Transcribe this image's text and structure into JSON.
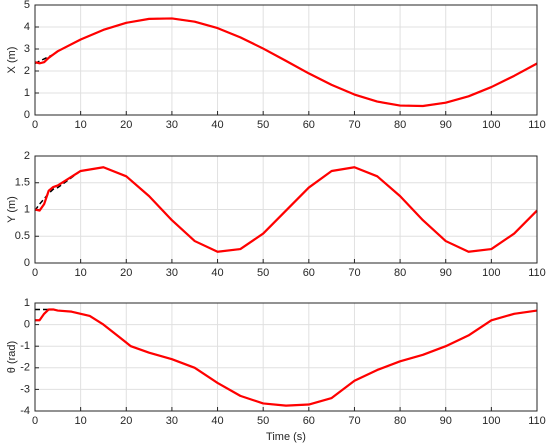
{
  "chart_data": [
    {
      "type": "line",
      "ylabel": "X (m)",
      "x": [
        0,
        1,
        2,
        3,
        4,
        5,
        10,
        15,
        20,
        25,
        30,
        35,
        40,
        45,
        50,
        55,
        60,
        65,
        70,
        75,
        80,
        85,
        90,
        95,
        100,
        105,
        110
      ],
      "series": [
        {
          "color": "#000000",
          "dash": true,
          "values": [
            2.34,
            2.45,
            2.55,
            2.65,
            2.75,
            2.9,
            3.43,
            3.87,
            4.19,
            4.37,
            4.39,
            4.24,
            3.95,
            3.53,
            3.02,
            2.46,
            1.89,
            1.37,
            0.93,
            0.61,
            0.43,
            0.41,
            0.56,
            0.85,
            1.27,
            1.78,
            2.34
          ]
        },
        {
          "color": "#ff0000",
          "dash": false,
          "values": [
            2.4,
            2.35,
            2.4,
            2.6,
            2.75,
            2.9,
            3.43,
            3.87,
            4.19,
            4.37,
            4.39,
            4.24,
            3.95,
            3.53,
            3.02,
            2.46,
            1.89,
            1.37,
            0.93,
            0.61,
            0.43,
            0.41,
            0.56,
            0.85,
            1.27,
            1.78,
            2.34
          ]
        }
      ],
      "xlim": [
        0,
        110
      ],
      "xticks": [
        0,
        10,
        20,
        30,
        40,
        50,
        60,
        70,
        80,
        90,
        100,
        110
      ],
      "ylim": [
        0,
        5
      ],
      "yticks": [
        0,
        1,
        2,
        3,
        4,
        5
      ],
      "grid": true
    },
    {
      "type": "line",
      "ylabel": "Y (m)",
      "x": [
        0,
        1,
        2,
        3,
        4,
        5,
        10,
        15,
        20,
        25,
        30,
        35,
        40,
        45,
        50,
        55,
        60,
        65,
        70,
        75,
        80,
        85,
        90,
        95,
        100,
        105,
        110
      ],
      "series": [
        {
          "color": "#000000",
          "dash": true,
          "values": [
            0.98,
            1.1,
            1.2,
            1.3,
            1.38,
            1.41,
            1.72,
            1.79,
            1.62,
            1.25,
            0.8,
            0.41,
            0.21,
            0.26,
            0.55,
            0.98,
            1.41,
            1.72,
            1.79,
            1.62,
            1.25,
            0.8,
            0.41,
            0.21,
            0.26,
            0.55,
            0.98
          ]
        },
        {
          "color": "#ff0000",
          "dash": false,
          "values": [
            1.0,
            0.98,
            1.1,
            1.35,
            1.42,
            1.45,
            1.72,
            1.79,
            1.62,
            1.25,
            0.8,
            0.41,
            0.21,
            0.26,
            0.55,
            0.98,
            1.41,
            1.72,
            1.79,
            1.62,
            1.25,
            0.8,
            0.41,
            0.21,
            0.26,
            0.55,
            0.98
          ]
        }
      ],
      "xlim": [
        0,
        110
      ],
      "xticks": [
        0,
        10,
        20,
        30,
        40,
        50,
        60,
        70,
        80,
        90,
        100,
        110
      ],
      "ylim": [
        0,
        2
      ],
      "yticks": [
        0,
        0.5,
        1,
        1.5,
        2
      ],
      "grid": true
    },
    {
      "type": "line",
      "ylabel": "θ (rad)",
      "xlabel": "Time (s)",
      "x": [
        0,
        1,
        2,
        3,
        4,
        5,
        8,
        12,
        15,
        18,
        21,
        25,
        30,
        35,
        40,
        45,
        50,
        55,
        60,
        65,
        70,
        75,
        80,
        85,
        90,
        95,
        100,
        105,
        110
      ],
      "series": [
        {
          "color": "#000000",
          "dash": true,
          "values": [
            0.7,
            0.7,
            0.7,
            0.7,
            0.7,
            0.65,
            0.6,
            0.4,
            0,
            -0.5,
            -1.0,
            -1.3,
            -1.6,
            -2.0,
            -2.7,
            -3.3,
            -3.65,
            -3.75,
            -3.7,
            -3.4,
            -2.6,
            -2.1,
            -1.7,
            -1.4,
            -1.0,
            -0.5,
            0.2,
            0.5,
            0.65
          ]
        },
        {
          "color": "#ff0000",
          "dash": false,
          "values": [
            0.2,
            0.2,
            0.5,
            0.7,
            0.7,
            0.65,
            0.6,
            0.4,
            0,
            -0.5,
            -1.0,
            -1.3,
            -1.6,
            -2.0,
            -2.7,
            -3.3,
            -3.65,
            -3.75,
            -3.7,
            -3.4,
            -2.6,
            -2.1,
            -1.7,
            -1.4,
            -1.0,
            -0.5,
            0.2,
            0.5,
            0.65
          ]
        }
      ],
      "xlim": [
        0,
        110
      ],
      "xticks": [
        0,
        10,
        20,
        30,
        40,
        50,
        60,
        70,
        80,
        90,
        100,
        110
      ],
      "ylim": [
        -4,
        1
      ],
      "yticks": [
        -4,
        -3,
        -2,
        -1,
        0,
        1
      ],
      "grid": true
    }
  ]
}
